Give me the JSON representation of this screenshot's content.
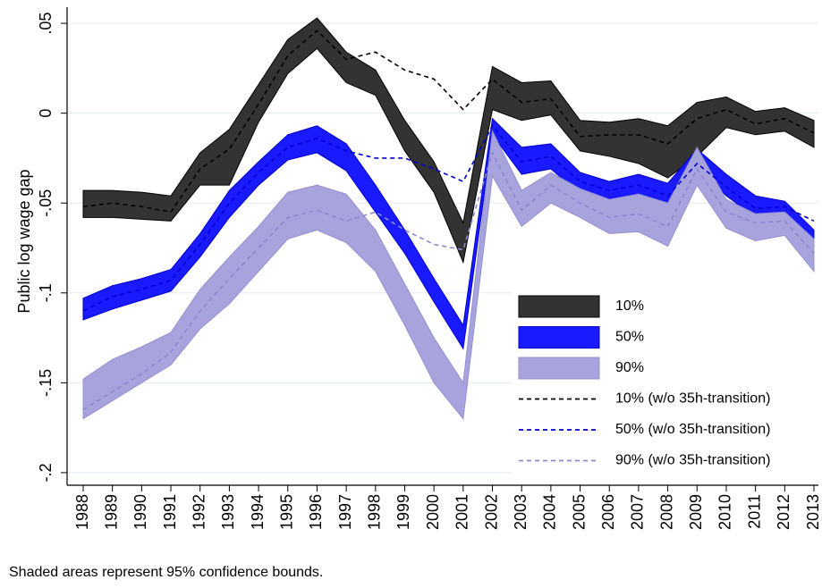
{
  "chart_data": {
    "type": "line",
    "y_label": "Public log wage gap",
    "note": "Shaded areas represent 95% confidence bounds.",
    "categories": [
      "1988",
      "1989",
      "1990",
      "1991",
      "1992",
      "1993",
      "1994",
      "1995",
      "1996",
      "1997",
      "1998",
      "1999",
      "2000",
      "2001",
      "2002",
      "2003",
      "2004",
      "2005",
      "2006",
      "2007",
      "2008",
      "2009",
      "2010",
      "2011",
      "2012",
      "2013"
    ],
    "ylim": [
      -0.207,
      0.059
    ],
    "yticks": [
      {
        "value": 0.05,
        "label": ".05"
      },
      0,
      {
        "value": -0.05,
        "label": "-.05"
      },
      {
        "value": -0.1,
        "label": "-.1"
      },
      {
        "value": -0.15,
        "label": "-.15"
      },
      {
        "value": -0.2,
        "label": "-.2"
      }
    ],
    "grid": true,
    "legend": "lower right",
    "series": [
      {
        "name": "10%",
        "style": "band",
        "color": "#333333",
        "stroke": "#000000",
        "upper": [
          -0.043,
          -0.043,
          -0.044,
          -0.046,
          -0.022,
          -0.009,
          0.016,
          0.041,
          0.053,
          0.034,
          0.024,
          -0.004,
          -0.027,
          -0.061,
          0.026,
          0.017,
          0.018,
          -0.004,
          -0.005,
          -0.003,
          -0.007,
          0.006,
          0.009,
          0.001,
          0.003,
          -0.004
        ],
        "lower": [
          -0.058,
          -0.058,
          -0.059,
          -0.06,
          -0.04,
          -0.04,
          -0.005,
          0.022,
          0.036,
          0.017,
          0.01,
          -0.021,
          -0.044,
          -0.083,
          0.002,
          -0.004,
          -0.001,
          -0.021,
          -0.024,
          -0.028,
          -0.036,
          -0.024,
          -0.008,
          -0.012,
          -0.01,
          -0.019
        ]
      },
      {
        "name": "50%",
        "style": "band",
        "color": "#1a1aff",
        "stroke": "#0000cc",
        "upper": [
          -0.103,
          -0.096,
          -0.092,
          -0.087,
          -0.067,
          -0.043,
          -0.027,
          -0.012,
          -0.007,
          -0.017,
          -0.04,
          -0.065,
          -0.092,
          -0.118,
          -0.003,
          -0.019,
          -0.017,
          -0.033,
          -0.038,
          -0.034,
          -0.039,
          -0.02,
          -0.034,
          -0.046,
          -0.049,
          -0.065
        ],
        "lower": [
          -0.115,
          -0.109,
          -0.104,
          -0.099,
          -0.08,
          -0.058,
          -0.04,
          -0.026,
          -0.022,
          -0.032,
          -0.055,
          -0.078,
          -0.105,
          -0.131,
          -0.012,
          -0.034,
          -0.031,
          -0.045,
          -0.051,
          -0.047,
          -0.052,
          -0.029,
          -0.046,
          -0.058,
          -0.06,
          -0.075
        ]
      },
      {
        "name": "90%",
        "style": "band",
        "color": "#a7a3dc",
        "stroke": "#9490d0",
        "upper": [
          -0.148,
          -0.137,
          -0.13,
          -0.122,
          -0.098,
          -0.08,
          -0.063,
          -0.044,
          -0.04,
          -0.045,
          -0.065,
          -0.095,
          -0.125,
          -0.15,
          -0.01,
          -0.043,
          -0.033,
          -0.042,
          -0.048,
          -0.045,
          -0.05,
          -0.019,
          -0.048,
          -0.056,
          -0.055,
          -0.07
        ],
        "lower": [
          -0.17,
          -0.16,
          -0.15,
          -0.14,
          -0.12,
          -0.106,
          -0.088,
          -0.07,
          -0.065,
          -0.072,
          -0.088,
          -0.118,
          -0.15,
          -0.17,
          -0.035,
          -0.063,
          -0.05,
          -0.058,
          -0.067,
          -0.066,
          -0.074,
          -0.04,
          -0.064,
          -0.071,
          -0.068,
          -0.088
        ]
      },
      {
        "name": "10% (w/o 35h-transition)",
        "style": "dashed",
        "color": "#000000",
        "values": [
          -0.052,
          -0.05,
          -0.052,
          -0.055,
          -0.031,
          -0.02,
          0.005,
          0.032,
          0.046,
          0.03,
          0.034,
          0.024,
          0.019,
          0.002,
          0.019,
          0.006,
          0.008,
          -0.013,
          -0.012,
          -0.012,
          -0.017,
          -0.003,
          0.002,
          -0.006,
          -0.003,
          -0.011
        ]
      },
      {
        "name": "50% (w/o 35h-transition)",
        "style": "dashed",
        "color": "#0000cc",
        "values": [
          -0.11,
          -0.102,
          -0.098,
          -0.093,
          -0.073,
          -0.05,
          -0.033,
          -0.019,
          -0.014,
          -0.021,
          -0.025,
          -0.025,
          -0.031,
          -0.038,
          -0.007,
          -0.027,
          -0.024,
          -0.038,
          -0.043,
          -0.04,
          -0.046,
          -0.028,
          -0.041,
          -0.053,
          -0.052,
          -0.06
        ]
      },
      {
        "name": "90% (w/o 35h-transition)",
        "style": "dashed",
        "color": "#8c88d0",
        "values": [
          -0.165,
          -0.155,
          -0.145,
          -0.133,
          -0.11,
          -0.092,
          -0.075,
          -0.058,
          -0.054,
          -0.06,
          -0.055,
          -0.065,
          -0.073,
          -0.076,
          -0.022,
          -0.054,
          -0.04,
          -0.05,
          -0.058,
          -0.056,
          -0.063,
          -0.031,
          -0.055,
          -0.061,
          -0.06,
          -0.078
        ]
      }
    ]
  }
}
